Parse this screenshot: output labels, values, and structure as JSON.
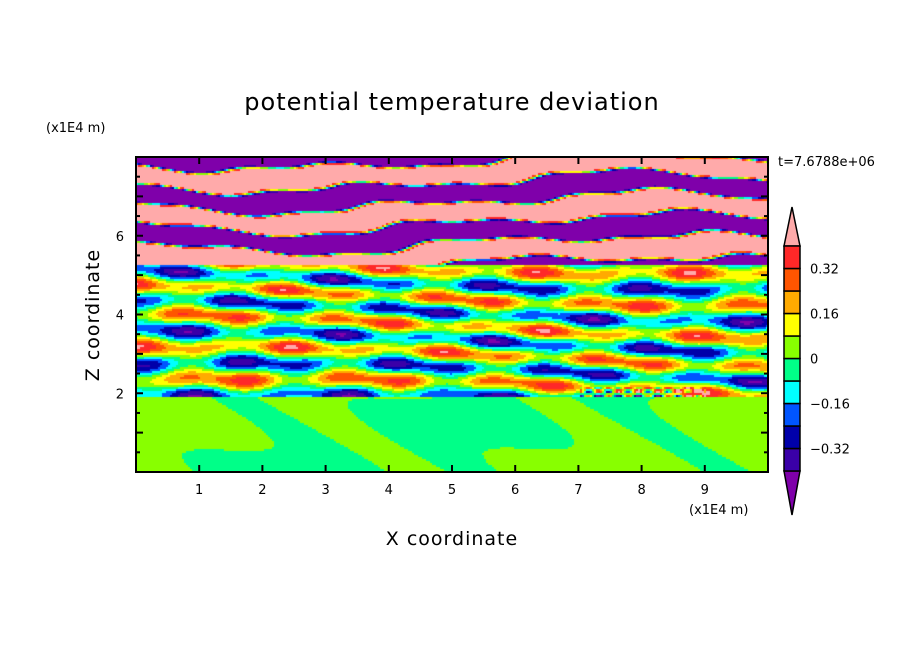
{
  "chart_data": {
    "type": "heatmap",
    "title": "potential temperature deviation",
    "xlabel": "X coordinate",
    "ylabel": "Z coordinate",
    "x_unit": "(x1E4 m)",
    "y_unit": "(x1E4 m)",
    "time_label": "t=7.6788e+06",
    "xlim": [
      0,
      10
    ],
    "ylim": [
      0,
      8
    ],
    "x_ticks": [
      "1",
      "2",
      "3",
      "4",
      "5",
      "6",
      "7",
      "8",
      "9"
    ],
    "y_ticks": [
      "2",
      "4",
      "6"
    ],
    "colorbar": {
      "levels": [
        -0.4,
        -0.32,
        -0.24,
        -0.16,
        -0.08,
        0,
        0.08,
        0.16,
        0.24,
        0.32,
        0.4
      ],
      "tick_labels": [
        "0.32",
        "0.16",
        "0",
        "−0.16",
        "−0.32"
      ],
      "tick_values": [
        0.32,
        0.16,
        0,
        -0.16,
        -0.32
      ],
      "extend": "both",
      "colors_low_to_high": [
        "#7f00aa",
        "#3a00a8",
        "#0000aa",
        "#0055ff",
        "#00ffff",
        "#00ff88",
        "#88ff00",
        "#ffff00",
        "#ffaa00",
        "#ff5500",
        "#ff2828",
        "#ffaaaa"
      ]
    }
  }
}
